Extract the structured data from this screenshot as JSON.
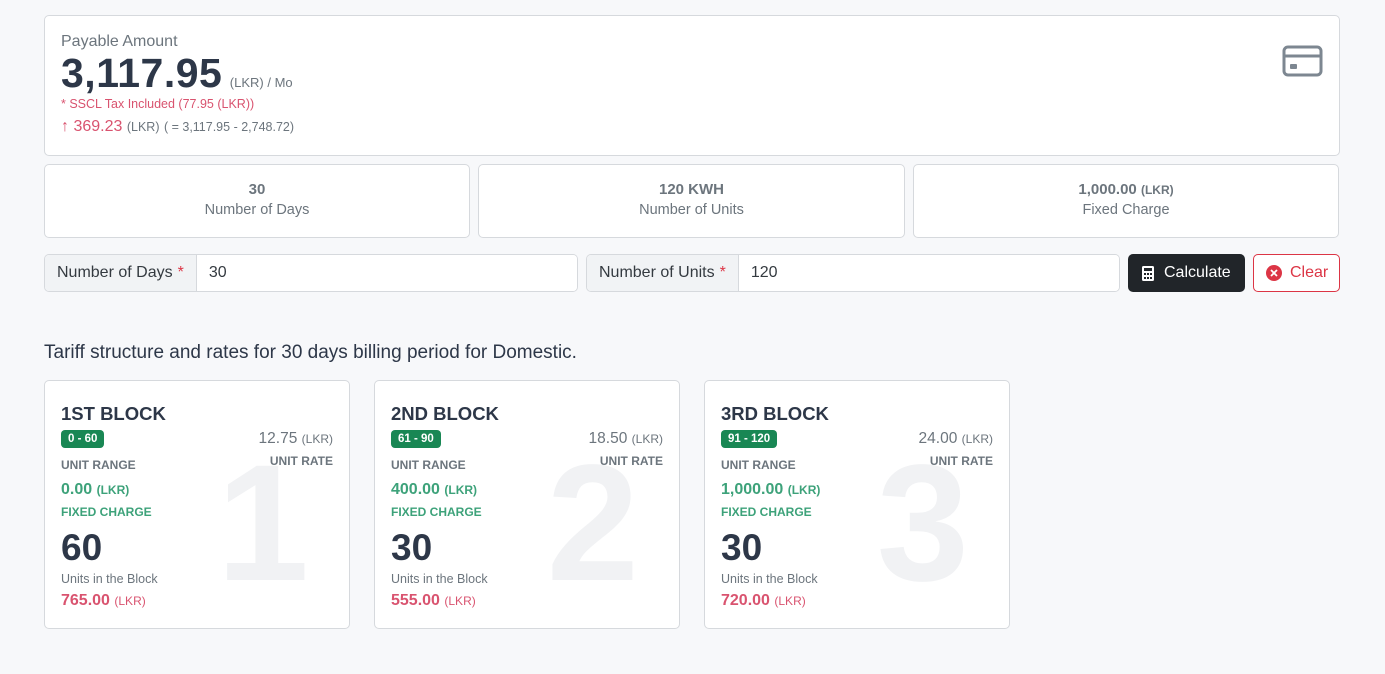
{
  "payable": {
    "label": "Payable Amount",
    "amount": "3,117.95",
    "unit": "(LKR) / Mo",
    "tax_note": "* SSCL Tax Included (77.95 (LKR))",
    "diff_arrow": "↑",
    "diff_value": "369.23",
    "diff_unit": "(LKR)",
    "diff_formula": "( = 3,117.95 - 2,748.72)",
    "icon": "credit-card-icon"
  },
  "stats": [
    {
      "value": "30",
      "suffix": "",
      "label": "Number of Days"
    },
    {
      "value": "120 KWH",
      "suffix": "",
      "label": "Number of Units"
    },
    {
      "value": "1,000.00",
      "suffix": "(LKR)",
      "label": "Fixed Charge"
    }
  ],
  "form": {
    "days_label": "Number of Days",
    "days_value": "30",
    "units_label": "Number of Units",
    "units_value": "120",
    "required_mark": "*",
    "calculate_label": "Calculate",
    "clear_label": "Clear"
  },
  "section_title": "Tariff structure and rates for 30 days billing period for Domestic.",
  "blocks": [
    {
      "title": "1ST BLOCK",
      "range": "0 - 60",
      "range_label": "UNIT RANGE",
      "rate": "12.75",
      "rate_unit": "(LKR)",
      "rate_label": "UNIT RATE",
      "fixed_charge": "0.00",
      "fixed_unit": "(LKR)",
      "fixed_label": "FIXED CHARGE",
      "units": "60",
      "units_label": "Units in the Block",
      "cost": "765.00",
      "cost_unit": "(LKR)",
      "watermark": "1"
    },
    {
      "title": "2ND BLOCK",
      "range": "61 - 90",
      "range_label": "UNIT RANGE",
      "rate": "18.50",
      "rate_unit": "(LKR)",
      "rate_label": "UNIT RATE",
      "fixed_charge": "400.00",
      "fixed_unit": "(LKR)",
      "fixed_label": "FIXED CHARGE",
      "units": "30",
      "units_label": "Units in the Block",
      "cost": "555.00",
      "cost_unit": "(LKR)",
      "watermark": "2"
    },
    {
      "title": "3RD BLOCK",
      "range": "91 - 120",
      "range_label": "UNIT RANGE",
      "rate": "24.00",
      "rate_unit": "(LKR)",
      "rate_label": "UNIT RATE",
      "fixed_charge": "1,000.00",
      "fixed_unit": "(LKR)",
      "fixed_label": "FIXED CHARGE",
      "units": "30",
      "units_label": "Units in the Block",
      "cost": "720.00",
      "cost_unit": "(LKR)",
      "watermark": "3"
    }
  ],
  "colors": {
    "accent_red": "#d9536f",
    "accent_green": "#3da27a",
    "badge_green": "#198754",
    "dark_button": "#212529",
    "danger": "#dc3545"
  }
}
